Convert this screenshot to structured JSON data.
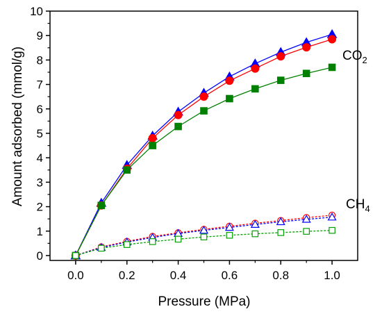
{
  "chart_data": {
    "type": "line",
    "title": "",
    "xlabel": "Pressure (MPa)",
    "ylabel": "Amount adsorbed (mmol/g)",
    "xlim": [
      -0.1,
      1.1
    ],
    "ylim": [
      -0.2,
      10
    ],
    "xticks": [
      "0.0",
      "0.2",
      "0.4",
      "0.6",
      "0.8",
      "1.0"
    ],
    "yticks": [
      "0",
      "1",
      "2",
      "3",
      "4",
      "5",
      "6",
      "7",
      "8",
      "9",
      "10"
    ],
    "grid": false,
    "legend": "none",
    "x": [
      0.0,
      0.1,
      0.2,
      0.3,
      0.4,
      0.5,
      0.6,
      0.7,
      0.8,
      0.9,
      1.0
    ],
    "annotations": [
      {
        "text": "CO",
        "sub": "2",
        "group": "CO2"
      },
      {
        "text": "CH",
        "sub": "4",
        "group": "CH4"
      }
    ],
    "series": [
      {
        "group": "CO2",
        "marker": "triangle",
        "filled": true,
        "dashed": false,
        "color": "#0000ff",
        "values": [
          0.0,
          2.15,
          3.7,
          4.9,
          5.88,
          6.65,
          7.32,
          7.85,
          8.32,
          8.72,
          9.05
        ]
      },
      {
        "group": "CO2",
        "marker": "circle",
        "filled": true,
        "dashed": false,
        "color": "#ff0000",
        "values": [
          0.0,
          2.05,
          3.55,
          4.8,
          5.75,
          6.5,
          7.15,
          7.65,
          8.15,
          8.52,
          8.85
        ]
      },
      {
        "group": "CO2",
        "marker": "square",
        "filled": true,
        "dashed": false,
        "color": "#008000",
        "values": [
          0.0,
          2.05,
          3.5,
          4.5,
          5.28,
          5.92,
          6.42,
          6.82,
          7.17,
          7.45,
          7.7
        ]
      },
      {
        "group": "CH4",
        "marker": "circle",
        "filled": false,
        "dashed": true,
        "color": "#ff0000",
        "values": [
          0.0,
          0.35,
          0.58,
          0.78,
          0.93,
          1.07,
          1.2,
          1.32,
          1.43,
          1.55,
          1.65
        ]
      },
      {
        "group": "CH4",
        "marker": "triangle",
        "filled": false,
        "dashed": true,
        "color": "#0000ff",
        "values": [
          0.0,
          0.33,
          0.55,
          0.74,
          0.9,
          1.03,
          1.15,
          1.27,
          1.38,
          1.48,
          1.57
        ]
      },
      {
        "group": "CH4",
        "marker": "square",
        "filled": false,
        "dashed": true,
        "color": "#00a000",
        "values": [
          0.0,
          0.3,
          0.45,
          0.57,
          0.67,
          0.76,
          0.83,
          0.89,
          0.94,
          0.99,
          1.03
        ]
      }
    ]
  }
}
